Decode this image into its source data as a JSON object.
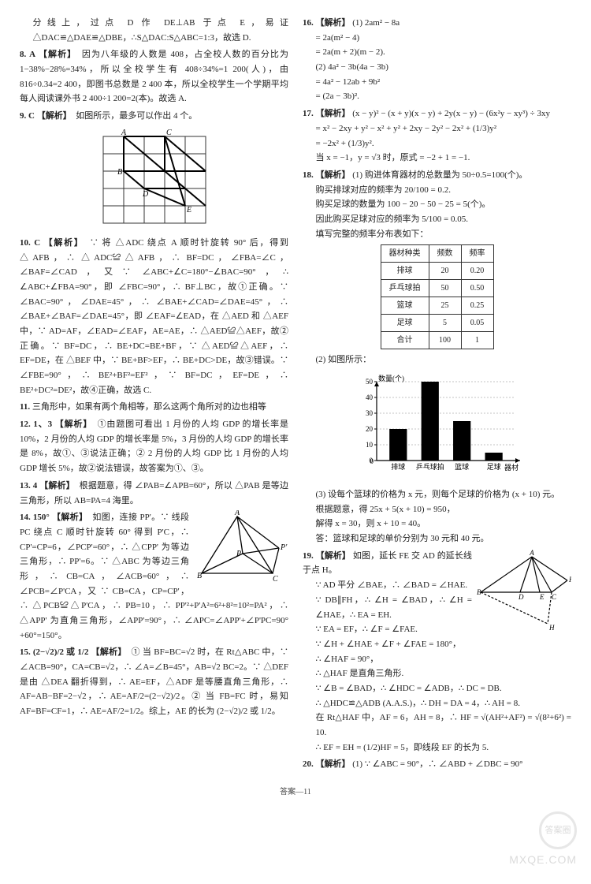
{
  "footer": "答案—11",
  "watermark": {
    "circle": "答案圈",
    "text": "MXQE.COM"
  },
  "left": {
    "pre8": "分线上，过点 D 作 DE⊥AB 于点 E，易证 △DAC≌△DAE≌△DBE，∴S△DAC:S△ABC=1:3，故选 D.",
    "q8": {
      "num": "8.",
      "ans": "A",
      "label": "【解析】",
      "text": "　因为八年级的人数是 408，占全校人数的百分比为 1−38%−28%=34%，所以全校学生有 408÷34%=1 200(人)，由 816÷0.34=2 400，即图书总数是 2 400 本，所以全校学生一个学期平均每人阅读课外书 2 400÷1 200=2(本)。故选 A."
    },
    "q9": {
      "num": "9.",
      "ans": "C",
      "label": "【解析】",
      "text": "　如图所示，最多可以作出 4 个。"
    },
    "fig9": {
      "labels": [
        "A",
        "B",
        "C",
        "D",
        "E"
      ],
      "grid_color": "#333"
    },
    "q10": {
      "num": "10.",
      "ans": "C",
      "label": "【解析】",
      "text": "　∵ 将 △ADC 绕点 A 顺时针旋转 90° 后，得到 △AFB，∴ △ADC≌△AFB，∴ BF=DC，∠FBA=∠C，∠BAF=∠CAD，又∵ ∠ABC+∠C=180°−∠BAC=90°，∴ ∠ABC+∠FBA=90°，即 ∠FBC=90°，∴ BF⊥BC，故①正确。∵ ∠BAC=90°，∠DAE=45°，∴ ∠BAE+∠CAD=∠DAE=45°，∴ ∠BAE+∠BAF=∠DAE=45°，即 ∠EAF=∠EAD，在 △AED 和 △AEF 中，∵ AD=AF，∠EAD=∠EAF，AE=AE，∴ △AED≌△AEF，故②正确。∵ BF=DC，∴ BE+DC=BE+BF，∵ △AED≌△AEF，∴ EF=DE，在 △BEF 中，∵ BE+BF>EF，∴ BE+DC>DE，故③错误。∵ ∠FBE=90°，∴ BE²+BF²=EF²，∵ BF=DC，EF=DE，∴ BE²+DC²=DE²，故④正确，故选 C."
    },
    "q11": {
      "num": "11.",
      "text": "三角形中，如果有两个角相等，那么这两个角所对的边也相等"
    },
    "q12": {
      "num": "12.",
      "ans": "1、3",
      "label": "【解析】",
      "text": "　①由题图可看出 1 月份的人均 GDP 的增长率是 10%，2 月份的人均 GDP 的增长率是 5%，3 月份的人均 GDP 的增长率是 8%，故①、③说法正确；② 2 月份的人均 GDP 比 1 月份的人均 GDP 增长 5%，故②说法错误，故答案为①、③。"
    },
    "q13": {
      "num": "13.",
      "ans": "4",
      "label": "【解析】",
      "text": "　根据题意，得 ∠PAB=∠APB=60°，所以 △PAB 是等边三角形，所以 AB=PA=4 海里。"
    },
    "q14": {
      "num": "14.",
      "ans": "150°",
      "label": "【解析】",
      "text": "　如图，连接 PP'。∵ 线段 PC 绕点 C 顺时针旋转 60° 得到 P'C，∴ CP'=CP=6，∠PCP'=60°，∴ △CPP' 为等边三角形，∴ PP'=6。∵ △ABC 为等边三角形，∴ CB=CA，∠ACB=60°，∴ ∠PCB=∠P'CA，又 ∵ CB=CA，CP=CP'，∴ △PCB≌△P'CA，∴ PB=10，∴ PP'²+P'A²=6²+8²=10²=PA²，∴ △APP' 为直角三角形，∠APP'=90°，∴ ∠APC=∠APP'+∠P'PC=90°+60°=150°。"
    },
    "fig14": {
      "labels": [
        "A",
        "B",
        "C",
        "P",
        "P'"
      ]
    },
    "q15": {
      "num": "15.",
      "ans": "(2−√2)/2 或 1/2",
      "label": "【解析】",
      "text": "　① 当 BF=BC=√2 时，在 Rt△ABC 中，∵ ∠ACB=90°，CA=CB=√2，∴ ∠A=∠B=45°，AB=√2 BC=2。∵ △DEF 是由 △DEA 翻折得到，∴ AE=EF，△ADF 是等腰直角三角形，∴ AF=AB−BF=2−√2，∴ AE=AF/2=(2−√2)/2。② 当 FB=FC 时，易知 AF=BF=CF=1，∴ AE=AF/2=1/2。综上，AE 的长为 (2−√2)/2 或 1/2。"
    }
  },
  "right": {
    "q16": {
      "num": "16.",
      "label": "【解析】",
      "lines": [
        "(1) 2am² − 8a",
        "= 2a(m² − 4)",
        "= 2a(m + 2)(m − 2).",
        "(2) 4a² − 3b(4a − 3b)",
        "= 4a² − 12ab + 9b²",
        "= (2a − 3b)²."
      ]
    },
    "q17": {
      "num": "17.",
      "label": "【解析】",
      "lines": [
        "(x − y)² − (x + y)(x − y) + 2y(x − y) − (6x²y − xy³) ÷ 3xy",
        "= x² − 2xy + y² − x² + y² + 2xy − 2y² − 2x² + (1/3)y²",
        "= −2x² + (1/3)y².",
        "当 x = −1，y = √3 时，原式 = −2 + 1 = −1."
      ]
    },
    "q18": {
      "num": "18.",
      "label": "【解析】",
      "intro": "(1) 购进体育器材的总数量为 50÷0.5=100(个)。",
      "lines": [
        "购买排球对应的频率为 20/100 = 0.2.",
        "购买足球的数量为 100 − 20 − 50 − 25 = 5(个)。",
        "因此购买足球对应的频率为 5/100 = 0.05.",
        "填写完整的频率分布表如下："
      ],
      "table": {
        "headers": [
          "器材种类",
          "频数",
          "频率"
        ],
        "rows": [
          [
            "排球",
            "20",
            "0.20"
          ],
          [
            "乒乓球拍",
            "50",
            "0.50"
          ],
          [
            "篮球",
            "25",
            "0.25"
          ],
          [
            "足球",
            "5",
            "0.05"
          ],
          [
            "合计",
            "100",
            "1"
          ]
        ]
      },
      "part2": "(2) 如图所示：",
      "chart": {
        "categories": [
          "排球",
          "乒乓球拍",
          "篮球",
          "足球"
        ],
        "values": [
          20,
          50,
          25,
          5
        ],
        "ylabel": "数量(个)",
        "xlabel": "器材",
        "ylim": [
          0,
          50
        ],
        "ytick": 10,
        "bar_color": "#000",
        "bg": "#fff",
        "axis": "#000"
      },
      "part3": [
        "(3) 设每个篮球的价格为 x 元，则每个足球的价格为 (x + 10) 元。",
        "根据题意，得 25x + 5(x + 10) = 950，",
        "解得 x = 30，则 x + 10 = 40。",
        "答：篮球和足球的单价分别为 30 元和 40 元。"
      ]
    },
    "q19": {
      "num": "19.",
      "label": "【解析】",
      "text": "如图，延长 FE 交 AD 的延长线于点 H。",
      "lines": [
        "∵ AD 平分 ∠BAE，∴ ∠BAD = ∠HAE.",
        "∵ DB∥FH，∴ ∠H = ∠BAD，∴ ∠H = ∠HAE，∴ EA = EH.",
        "∵ EA = EF，∴ ∠F = ∠FAE.",
        "∵ ∠H + ∠HAE + ∠F + ∠FAE = 180°，",
        "∴ ∠HAF = 90°，",
        "∴ △HAF 是直角三角形.",
        "∵ ∠B = ∠BAD，∴ ∠HDC = ∠ADB，∴ DC = DB.",
        "∴ △HDC≌△ADB (A.A.S.)，∴ DH = DA = 4，∴ AH = 8.",
        "在 Rt△HAF 中，AF = 6，AH = 8，∴ HF = √(AH²+AF²) = √(8²+6²) = 10.",
        "∴ EF = EH = (1/2)HF = 5，即线段 EF 的长为 5."
      ],
      "fig": {
        "labels": [
          "A",
          "B",
          "C",
          "D",
          "E",
          "F",
          "H"
        ]
      }
    },
    "q20": {
      "num": "20.",
      "label": "【解析】",
      "text": "(1) ∵ ∠ABC = 90°，∴ ∠ABD + ∠DBC = 90°"
    }
  }
}
